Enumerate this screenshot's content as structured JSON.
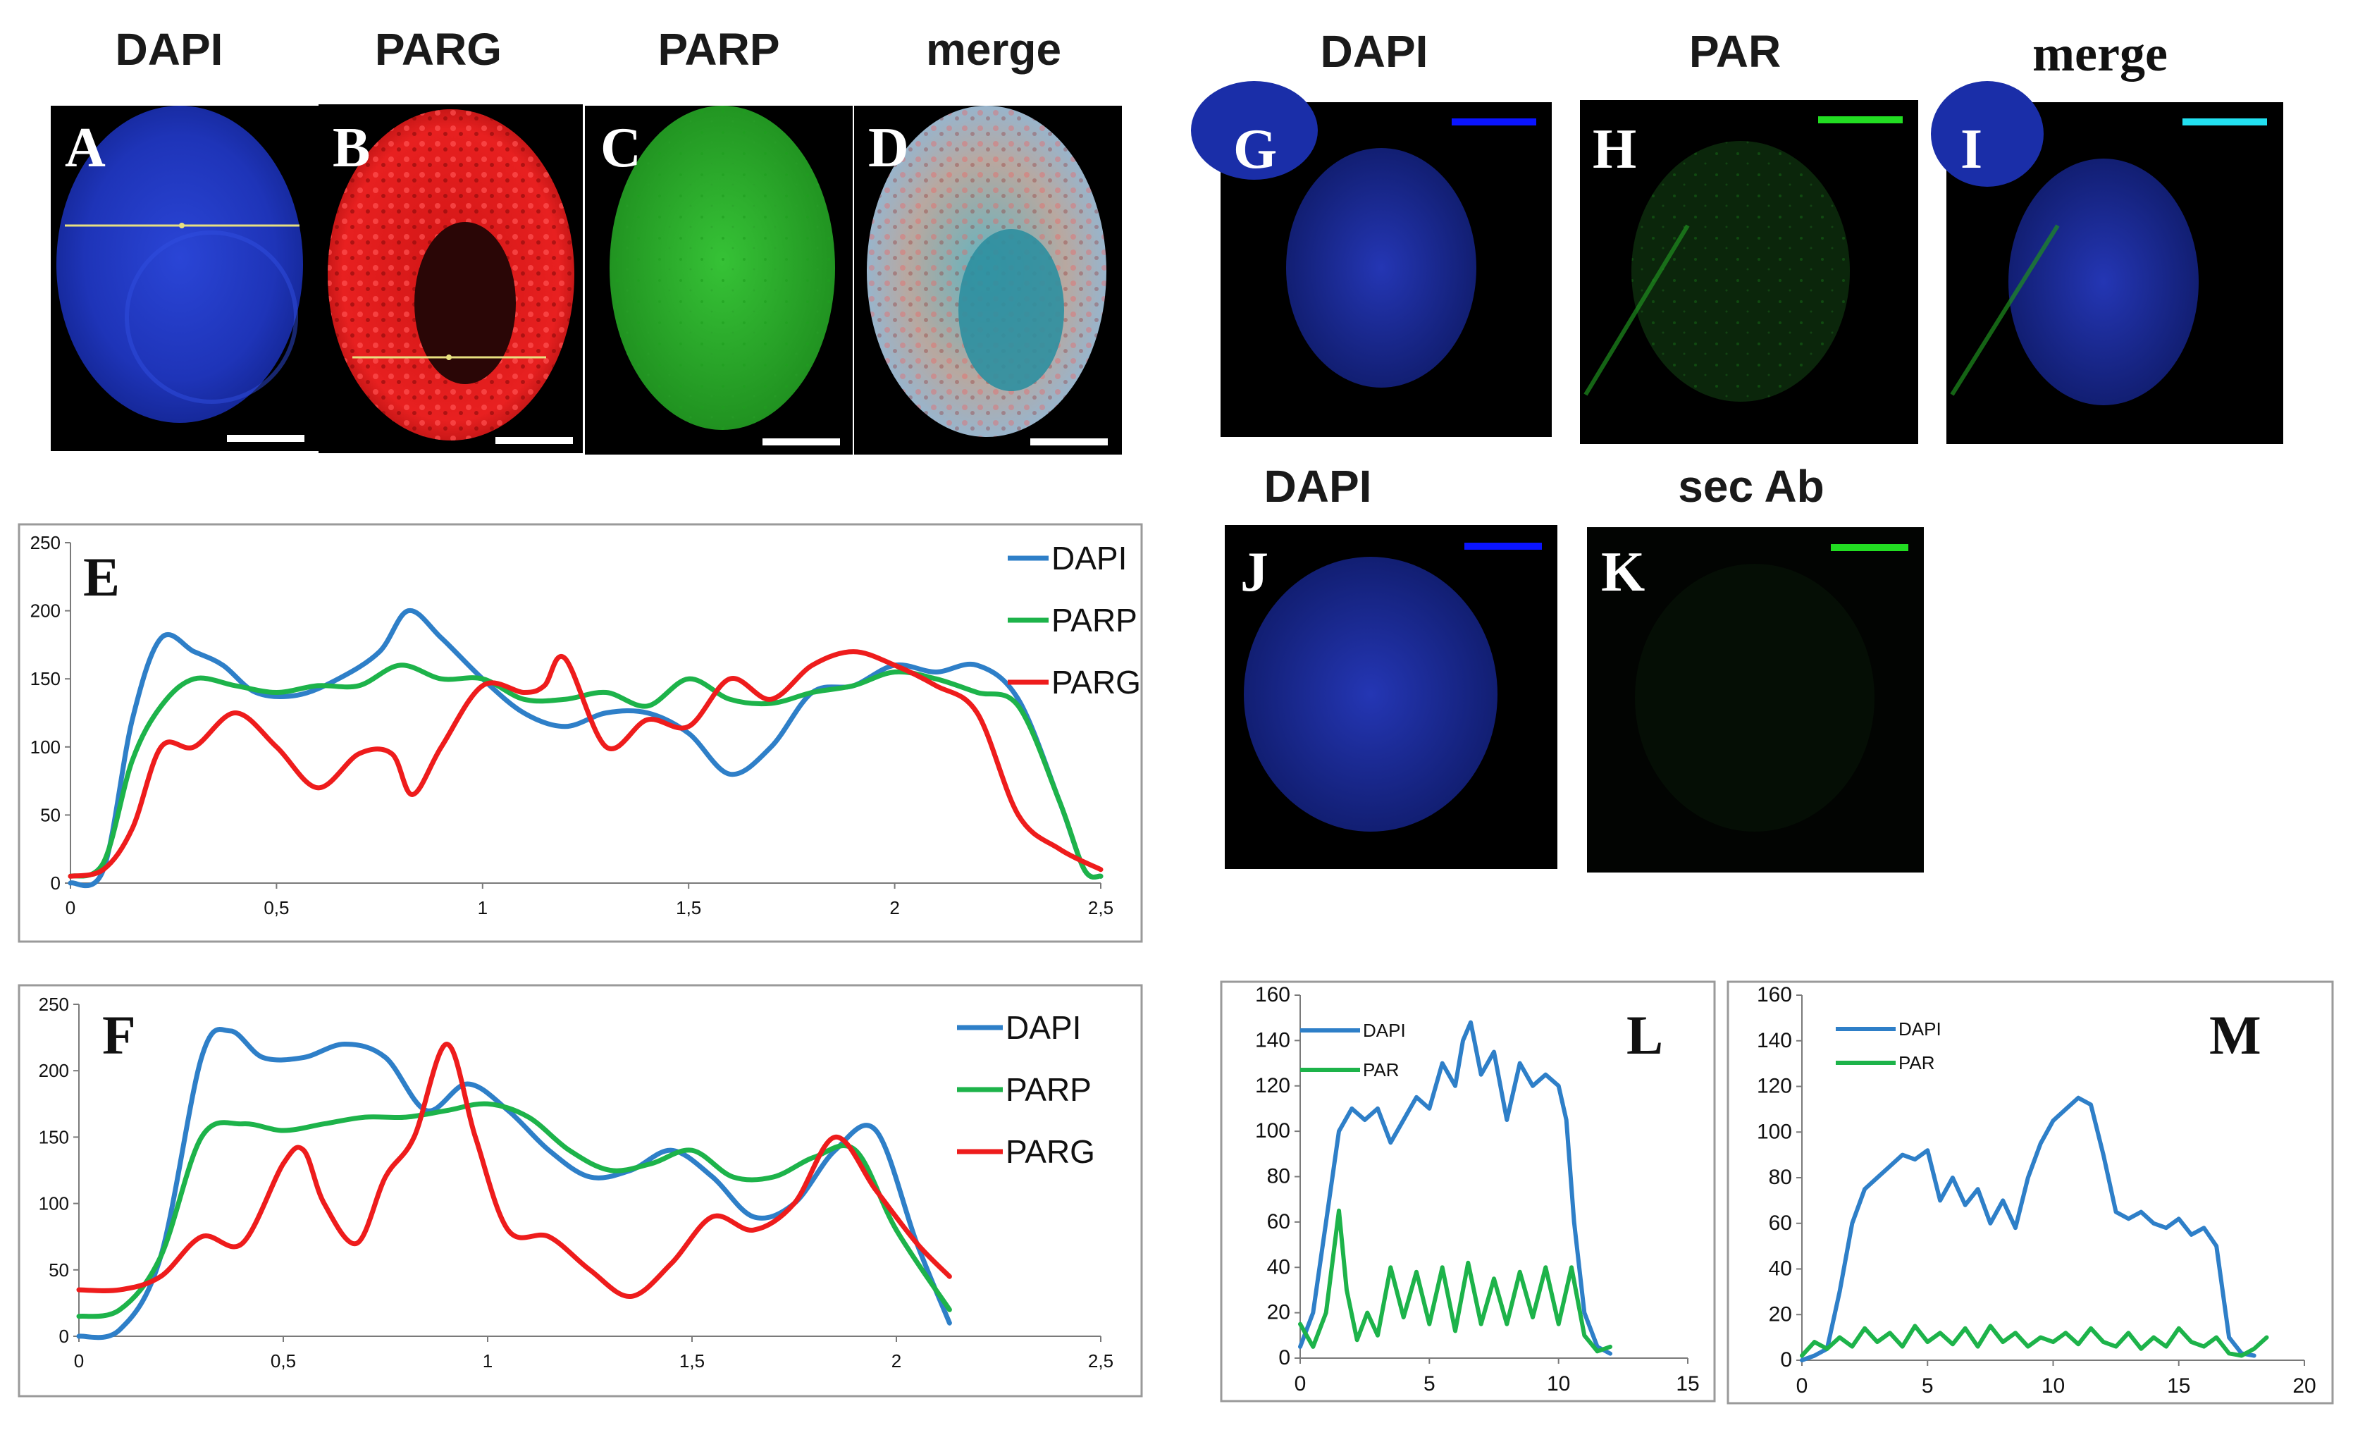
{
  "micrographs": {
    "left": {
      "column_labels": [
        "DAPI",
        "PARG",
        "PARP",
        "merge"
      ],
      "panels": [
        {
          "letter": "A",
          "channel": "DAPI",
          "color": "#1f3cd0"
        },
        {
          "letter": "B",
          "channel": "PARG",
          "color": "#e01818"
        },
        {
          "letter": "C",
          "channel": "PARP",
          "color": "#2fb52f"
        },
        {
          "letter": "D",
          "channel": "merge",
          "color": "#7fb0c8"
        }
      ]
    },
    "right": {
      "row1_labels": [
        "DAPI",
        "PAR",
        "merge"
      ],
      "row2_labels": [
        "DAPI",
        "sec Ab"
      ],
      "panels": [
        {
          "letter": "G",
          "channel": "DAPI",
          "color": "#1f3cd0",
          "scalebar_color": "#0a14ff"
        },
        {
          "letter": "H",
          "channel": "PAR",
          "color": "#1f7a1f",
          "scalebar_color": "#22dd22"
        },
        {
          "letter": "I",
          "channel": "merge",
          "color": "#1f3cd0",
          "scalebar_color": "#22e0f0"
        },
        {
          "letter": "J",
          "channel": "DAPI",
          "color": "#1f3cd0",
          "scalebar_color": "#0a14ff"
        },
        {
          "letter": "K",
          "channel": "sec Ab",
          "color": "#0a140a",
          "scalebar_color": "#22dd22"
        }
      ]
    }
  },
  "colors": {
    "DAPI": "#2e7fc8",
    "PARP": "#1db34a",
    "PARG": "#ee1c1c",
    "PAR": "#1db34a",
    "scalebar": "#ffffff"
  },
  "chart_data": [
    {
      "panel": "E",
      "type": "line",
      "x_ticks": [
        "0",
        "0,5",
        "1",
        "1,5",
        "2",
        "2,5"
      ],
      "y_ticks": [
        "0",
        "50",
        "100",
        "150",
        "200",
        "250"
      ],
      "xlim": [
        0,
        2.5
      ],
      "ylim": [
        0,
        250
      ],
      "legend": "top-right",
      "series": [
        {
          "name": "DAPI",
          "color": "#2e7fc8",
          "x": [
            0,
            0.08,
            0.15,
            0.22,
            0.3,
            0.37,
            0.45,
            0.55,
            0.65,
            0.75,
            0.82,
            0.9,
            1.0,
            1.1,
            1.2,
            1.3,
            1.4,
            1.5,
            1.6,
            1.7,
            1.8,
            1.9,
            2.0,
            2.1,
            2.2,
            2.3,
            2.4,
            2.46,
            2.5
          ],
          "y": [
            0,
            10,
            120,
            180,
            170,
            160,
            140,
            138,
            150,
            170,
            200,
            180,
            150,
            125,
            115,
            125,
            125,
            110,
            80,
            100,
            140,
            145,
            160,
            155,
            160,
            135,
            60,
            10,
            5
          ]
        },
        {
          "name": "PARP",
          "color": "#1db34a",
          "x": [
            0,
            0.08,
            0.15,
            0.22,
            0.3,
            0.4,
            0.5,
            0.6,
            0.7,
            0.8,
            0.9,
            1.0,
            1.1,
            1.2,
            1.3,
            1.4,
            1.5,
            1.6,
            1.7,
            1.8,
            1.9,
            2.0,
            2.1,
            2.2,
            2.3,
            2.4,
            2.46,
            2.5
          ],
          "y": [
            5,
            15,
            90,
            130,
            150,
            145,
            140,
            145,
            145,
            160,
            150,
            150,
            135,
            135,
            140,
            130,
            150,
            135,
            132,
            140,
            145,
            155,
            150,
            140,
            130,
            60,
            10,
            5
          ]
        },
        {
          "name": "PARG",
          "color": "#ee1c1c",
          "x": [
            0,
            0.08,
            0.15,
            0.22,
            0.3,
            0.4,
            0.5,
            0.6,
            0.7,
            0.78,
            0.83,
            0.9,
            1.0,
            1.1,
            1.15,
            1.2,
            1.3,
            1.4,
            1.5,
            1.6,
            1.7,
            1.8,
            1.9,
            2.0,
            2.1,
            2.2,
            2.3,
            2.4,
            2.5
          ],
          "y": [
            5,
            10,
            40,
            100,
            100,
            125,
            100,
            70,
            95,
            95,
            65,
            100,
            145,
            140,
            145,
            165,
            100,
            120,
            115,
            150,
            135,
            160,
            170,
            160,
            145,
            125,
            50,
            25,
            10
          ]
        }
      ]
    },
    {
      "panel": "F",
      "type": "line",
      "x_ticks": [
        "0",
        "0,5",
        "1",
        "1,5",
        "2",
        "2,5"
      ],
      "y_ticks": [
        "0",
        "50",
        "100",
        "150",
        "200",
        "250"
      ],
      "xlim": [
        0,
        2.5
      ],
      "ylim": [
        0,
        250
      ],
      "legend": "top-right",
      "series": [
        {
          "name": "DAPI",
          "color": "#2e7fc8",
          "x": [
            0,
            0.1,
            0.2,
            0.3,
            0.37,
            0.45,
            0.55,
            0.65,
            0.75,
            0.85,
            0.95,
            1.05,
            1.15,
            1.25,
            1.35,
            1.45,
            1.55,
            1.65,
            1.75,
            1.85,
            1.95,
            2.05,
            2.13
          ],
          "y": [
            0,
            5,
            60,
            210,
            230,
            210,
            210,
            220,
            210,
            170,
            190,
            170,
            140,
            120,
            125,
            140,
            120,
            90,
            100,
            140,
            155,
            70,
            10
          ]
        },
        {
          "name": "PARP",
          "color": "#1db34a",
          "x": [
            0,
            0.1,
            0.2,
            0.3,
            0.4,
            0.5,
            0.6,
            0.7,
            0.8,
            0.9,
            1.0,
            1.1,
            1.2,
            1.3,
            1.4,
            1.5,
            1.6,
            1.7,
            1.8,
            1.9,
            2.0,
            2.13
          ],
          "y": [
            15,
            20,
            60,
            150,
            160,
            155,
            160,
            165,
            165,
            170,
            175,
            165,
            140,
            125,
            130,
            140,
            120,
            120,
            135,
            140,
            80,
            20
          ]
        },
        {
          "name": "PARG",
          "color": "#ee1c1c",
          "x": [
            0,
            0.1,
            0.2,
            0.3,
            0.4,
            0.5,
            0.55,
            0.6,
            0.68,
            0.75,
            0.82,
            0.9,
            0.97,
            1.05,
            1.15,
            1.25,
            1.35,
            1.45,
            1.55,
            1.65,
            1.75,
            1.85,
            1.95,
            2.05,
            2.13
          ],
          "y": [
            35,
            35,
            45,
            75,
            70,
            130,
            140,
            100,
            70,
            120,
            150,
            220,
            150,
            80,
            75,
            50,
            30,
            55,
            90,
            80,
            100,
            150,
            110,
            70,
            45
          ]
        }
      ]
    },
    {
      "panel": "L",
      "type": "line",
      "x_ticks": [
        "0",
        "5",
        "10",
        "15"
      ],
      "y_ticks": [
        "0",
        "20",
        "40",
        "60",
        "80",
        "100",
        "120",
        "140",
        "160"
      ],
      "xlim": [
        0,
        15
      ],
      "ylim": [
        0,
        160
      ],
      "legend": "top-left",
      "series": [
        {
          "name": "DAPI",
          "color": "#2e7fc8",
          "x": [
            0,
            0.5,
            1.0,
            1.5,
            2.0,
            2.5,
            3.0,
            3.5,
            4.0,
            4.5,
            5.0,
            5.5,
            6.0,
            6.3,
            6.6,
            7.0,
            7.5,
            8.0,
            8.5,
            9.0,
            9.5,
            10.0,
            10.3,
            10.6,
            11.0,
            11.5,
            12.0
          ],
          "y": [
            5,
            20,
            60,
            100,
            110,
            105,
            110,
            95,
            105,
            115,
            110,
            130,
            120,
            140,
            148,
            125,
            135,
            105,
            130,
            120,
            125,
            120,
            105,
            60,
            20,
            5,
            2
          ]
        },
        {
          "name": "PAR",
          "color": "#1db34a",
          "x": [
            0,
            0.5,
            1.0,
            1.5,
            1.8,
            2.2,
            2.6,
            3.0,
            3.5,
            4.0,
            4.5,
            5.0,
            5.5,
            6.0,
            6.5,
            7.0,
            7.5,
            8.0,
            8.5,
            9.0,
            9.5,
            10.0,
            10.5,
            11.0,
            11.5,
            12.0
          ],
          "y": [
            15,
            5,
            20,
            65,
            30,
            8,
            20,
            10,
            40,
            18,
            38,
            15,
            40,
            12,
            42,
            15,
            35,
            15,
            38,
            18,
            40,
            15,
            40,
            10,
            3,
            5
          ]
        }
      ]
    },
    {
      "panel": "M",
      "type": "line",
      "x_ticks": [
        "0",
        "5",
        "10",
        "15",
        "20"
      ],
      "y_ticks": [
        "0",
        "20",
        "40",
        "60",
        "80",
        "100",
        "120",
        "140",
        "160"
      ],
      "xlim": [
        0,
        20
      ],
      "ylim": [
        0,
        160
      ],
      "legend": "top-left",
      "series": [
        {
          "name": "DAPI",
          "color": "#2e7fc8",
          "x": [
            0,
            0.5,
            1.0,
            1.5,
            2.0,
            2.5,
            3.0,
            3.5,
            4.0,
            4.5,
            5.0,
            5.5,
            6.0,
            6.5,
            7.0,
            7.5,
            8.0,
            8.5,
            9.0,
            9.5,
            10.0,
            10.5,
            11.0,
            11.5,
            12.0,
            12.5,
            13.0,
            13.5,
            14.0,
            14.5,
            15.0,
            15.5,
            16.0,
            16.5,
            17.0,
            17.5,
            18.0
          ],
          "y": [
            0,
            2,
            5,
            30,
            60,
            75,
            80,
            85,
            90,
            88,
            92,
            70,
            80,
            68,
            75,
            60,
            70,
            58,
            80,
            95,
            105,
            110,
            115,
            112,
            90,
            65,
            62,
            65,
            60,
            58,
            62,
            55,
            58,
            50,
            10,
            3,
            2
          ]
        },
        {
          "name": "PAR",
          "color": "#1db34a",
          "x": [
            0,
            0.5,
            1.0,
            1.5,
            2.0,
            2.5,
            3.0,
            3.5,
            4.0,
            4.5,
            5.0,
            5.5,
            6.0,
            6.5,
            7.0,
            7.5,
            8.0,
            8.5,
            9.0,
            9.5,
            10.0,
            10.5,
            11.0,
            11.5,
            12.0,
            12.5,
            13.0,
            13.5,
            14.0,
            14.5,
            15.0,
            15.5,
            16.0,
            16.5,
            17.0,
            17.5,
            18.0,
            18.5
          ],
          "y": [
            2,
            8,
            5,
            10,
            6,
            14,
            8,
            12,
            6,
            15,
            8,
            12,
            7,
            14,
            6,
            15,
            8,
            12,
            6,
            10,
            8,
            12,
            7,
            14,
            8,
            6,
            12,
            5,
            10,
            6,
            14,
            8,
            6,
            10,
            3,
            2,
            5,
            10
          ]
        }
      ]
    }
  ]
}
